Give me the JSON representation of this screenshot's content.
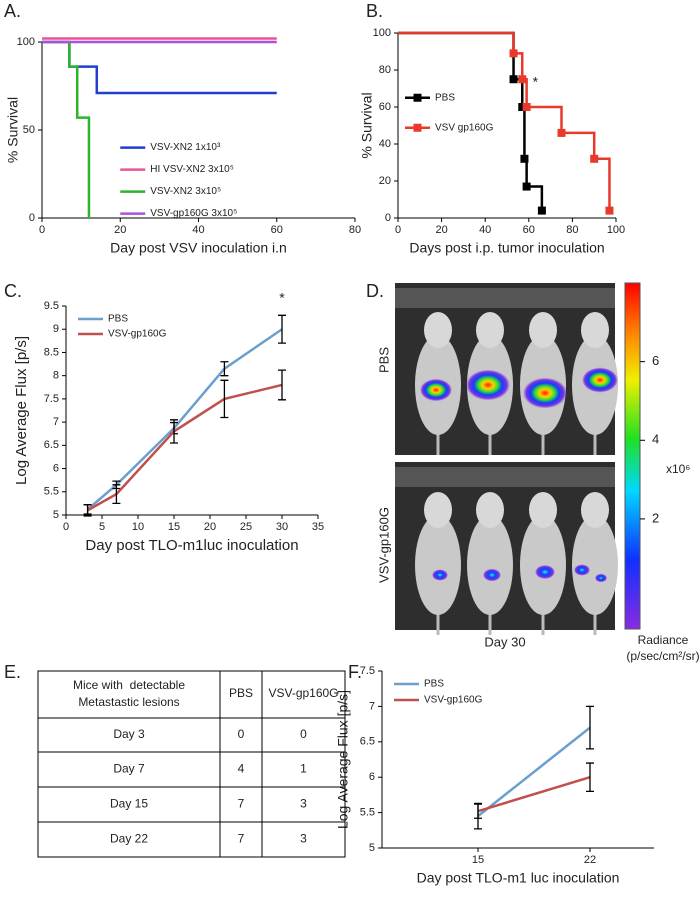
{
  "panel_labels": [
    "A.",
    "B.",
    "C.",
    "D.",
    "E.",
    "F."
  ],
  "chart_data": [
    {
      "type": "step",
      "xlabel": "Day post VSV inoculation i.n",
      "ylabel": "% Survival",
      "xlim": [
        0,
        80
      ],
      "xticks": [
        0,
        20,
        40,
        60,
        80
      ],
      "ylim": [
        0,
        100
      ],
      "yticks": [
        0,
        50,
        100
      ],
      "legend": "lower-center",
      "markers": false,
      "series": [
        {
          "name": "VSV-XN2 1x10³",
          "color": "#1f3fd0",
          "x": [
            0,
            7,
            14,
            60
          ],
          "values": [
            100,
            86,
            71,
            71
          ]
        },
        {
          "name": "HI VSV-XN2 3x10⁵",
          "color": "#e6559a",
          "x": [
            0,
            60
          ],
          "values": [
            102,
            102
          ]
        },
        {
          "name": "VSV-XN2 3x10⁵",
          "color": "#2cb52c",
          "x": [
            0,
            7,
            9,
            12
          ],
          "values": [
            100,
            86,
            57,
            0
          ]
        },
        {
          "name": "VSV-gp160G 3x10⁵",
          "color": "#b050d8",
          "x": [
            0,
            60
          ],
          "values": [
            100,
            100
          ]
        }
      ]
    },
    {
      "type": "step",
      "xlabel": "Days post i.p. tumor inoculation",
      "ylabel": "% Survival",
      "xlim": [
        0,
        100
      ],
      "xticks": [
        0,
        20,
        40,
        60,
        80,
        100
      ],
      "ylim": [
        0,
        100
      ],
      "yticks": [
        0,
        20,
        40,
        60,
        80,
        100
      ],
      "legend": "center-left",
      "markers": true,
      "series": [
        {
          "name": "PBS",
          "color": "#000000",
          "x": [
            0,
            53,
            57,
            58,
            59,
            66
          ],
          "values": [
            100,
            75,
            60,
            32,
            17,
            4
          ]
        },
        {
          "name": "VSV gp160G",
          "color": "#e8392a",
          "x": [
            0,
            53,
            57,
            59,
            75,
            90,
            97
          ],
          "values": [
            100,
            89,
            75,
            60,
            46,
            32,
            4
          ]
        }
      ],
      "annotations": [
        {
          "text": "*",
          "x": 63,
          "y": 73
        }
      ]
    },
    {
      "type": "line",
      "xlabel": "Day post TLO-m1luc inoculation",
      "ylabel": "Log Average Flux [p/s]",
      "xlim": [
        0,
        35
      ],
      "xticks": [
        0,
        5,
        10,
        15,
        20,
        25,
        30,
        35
      ],
      "ylim": [
        5,
        9.5
      ],
      "yticks": [
        5,
        5.5,
        6,
        6.5,
        7,
        7.5,
        8,
        8.5,
        9,
        9.5
      ],
      "legend": "upper-left",
      "x": [
        3,
        7,
        15,
        22,
        30
      ],
      "series": [
        {
          "name": "PBS",
          "color": "#6a9fcf",
          "values": [
            5.12,
            5.65,
            6.87,
            8.15,
            9.0
          ],
          "errors": [
            0.1,
            0.08,
            0.12,
            0.15,
            0.3
          ]
        },
        {
          "name": "VSV-gp160G",
          "color": "#c0504d",
          "values": [
            5.1,
            5.45,
            6.8,
            7.5,
            7.8
          ],
          "errors": [
            0.12,
            0.2,
            0.25,
            0.4,
            0.32
          ]
        }
      ],
      "annotations": [
        {
          "text": "*",
          "x": 30,
          "y": 9.65
        }
      ]
    },
    {
      "type": "line",
      "xlabel": "Day post TLO-m1 luc inoculation",
      "ylabel": "Log Average Flux [p/s]",
      "xlim": [
        9,
        26
      ],
      "xticks": [
        15,
        22
      ],
      "ylim": [
        5,
        7.5
      ],
      "yticks": [
        5,
        5.5,
        6,
        6.5,
        7,
        7.5
      ],
      "legend": "upper-left",
      "x": [
        15,
        22
      ],
      "series": [
        {
          "name": "PBS",
          "color": "#6a9fcf",
          "values": [
            5.45,
            6.7
          ],
          "errors": [
            0.18,
            0.3
          ]
        },
        {
          "name": "VSV-gp160G",
          "color": "#c0504d",
          "values": [
            5.52,
            6.0
          ],
          "errors": [
            0.1,
            0.2
          ]
        }
      ]
    }
  ],
  "image_panel": {
    "row_labels": [
      "PBS",
      "VSV-gp160G"
    ],
    "caption": "Day 30",
    "colorbar": {
      "lim": [
        -0.8,
        8
      ],
      "ticks": [
        2,
        4,
        6
      ],
      "multiplier": "x10⁶",
      "title": [
        "Radiance",
        "(p/sec/cm²/sr)"
      ]
    }
  },
  "table": {
    "header": [
      [
        "Mice with  detectable",
        "Metastastic lesions"
      ],
      "PBS",
      "VSV-gp160G"
    ],
    "rows": [
      [
        "Day 3",
        0,
        0
      ],
      [
        "Day 7",
        4,
        1
      ],
      [
        "Day 15",
        7,
        3
      ],
      [
        "Day 22",
        7,
        3
      ]
    ]
  }
}
